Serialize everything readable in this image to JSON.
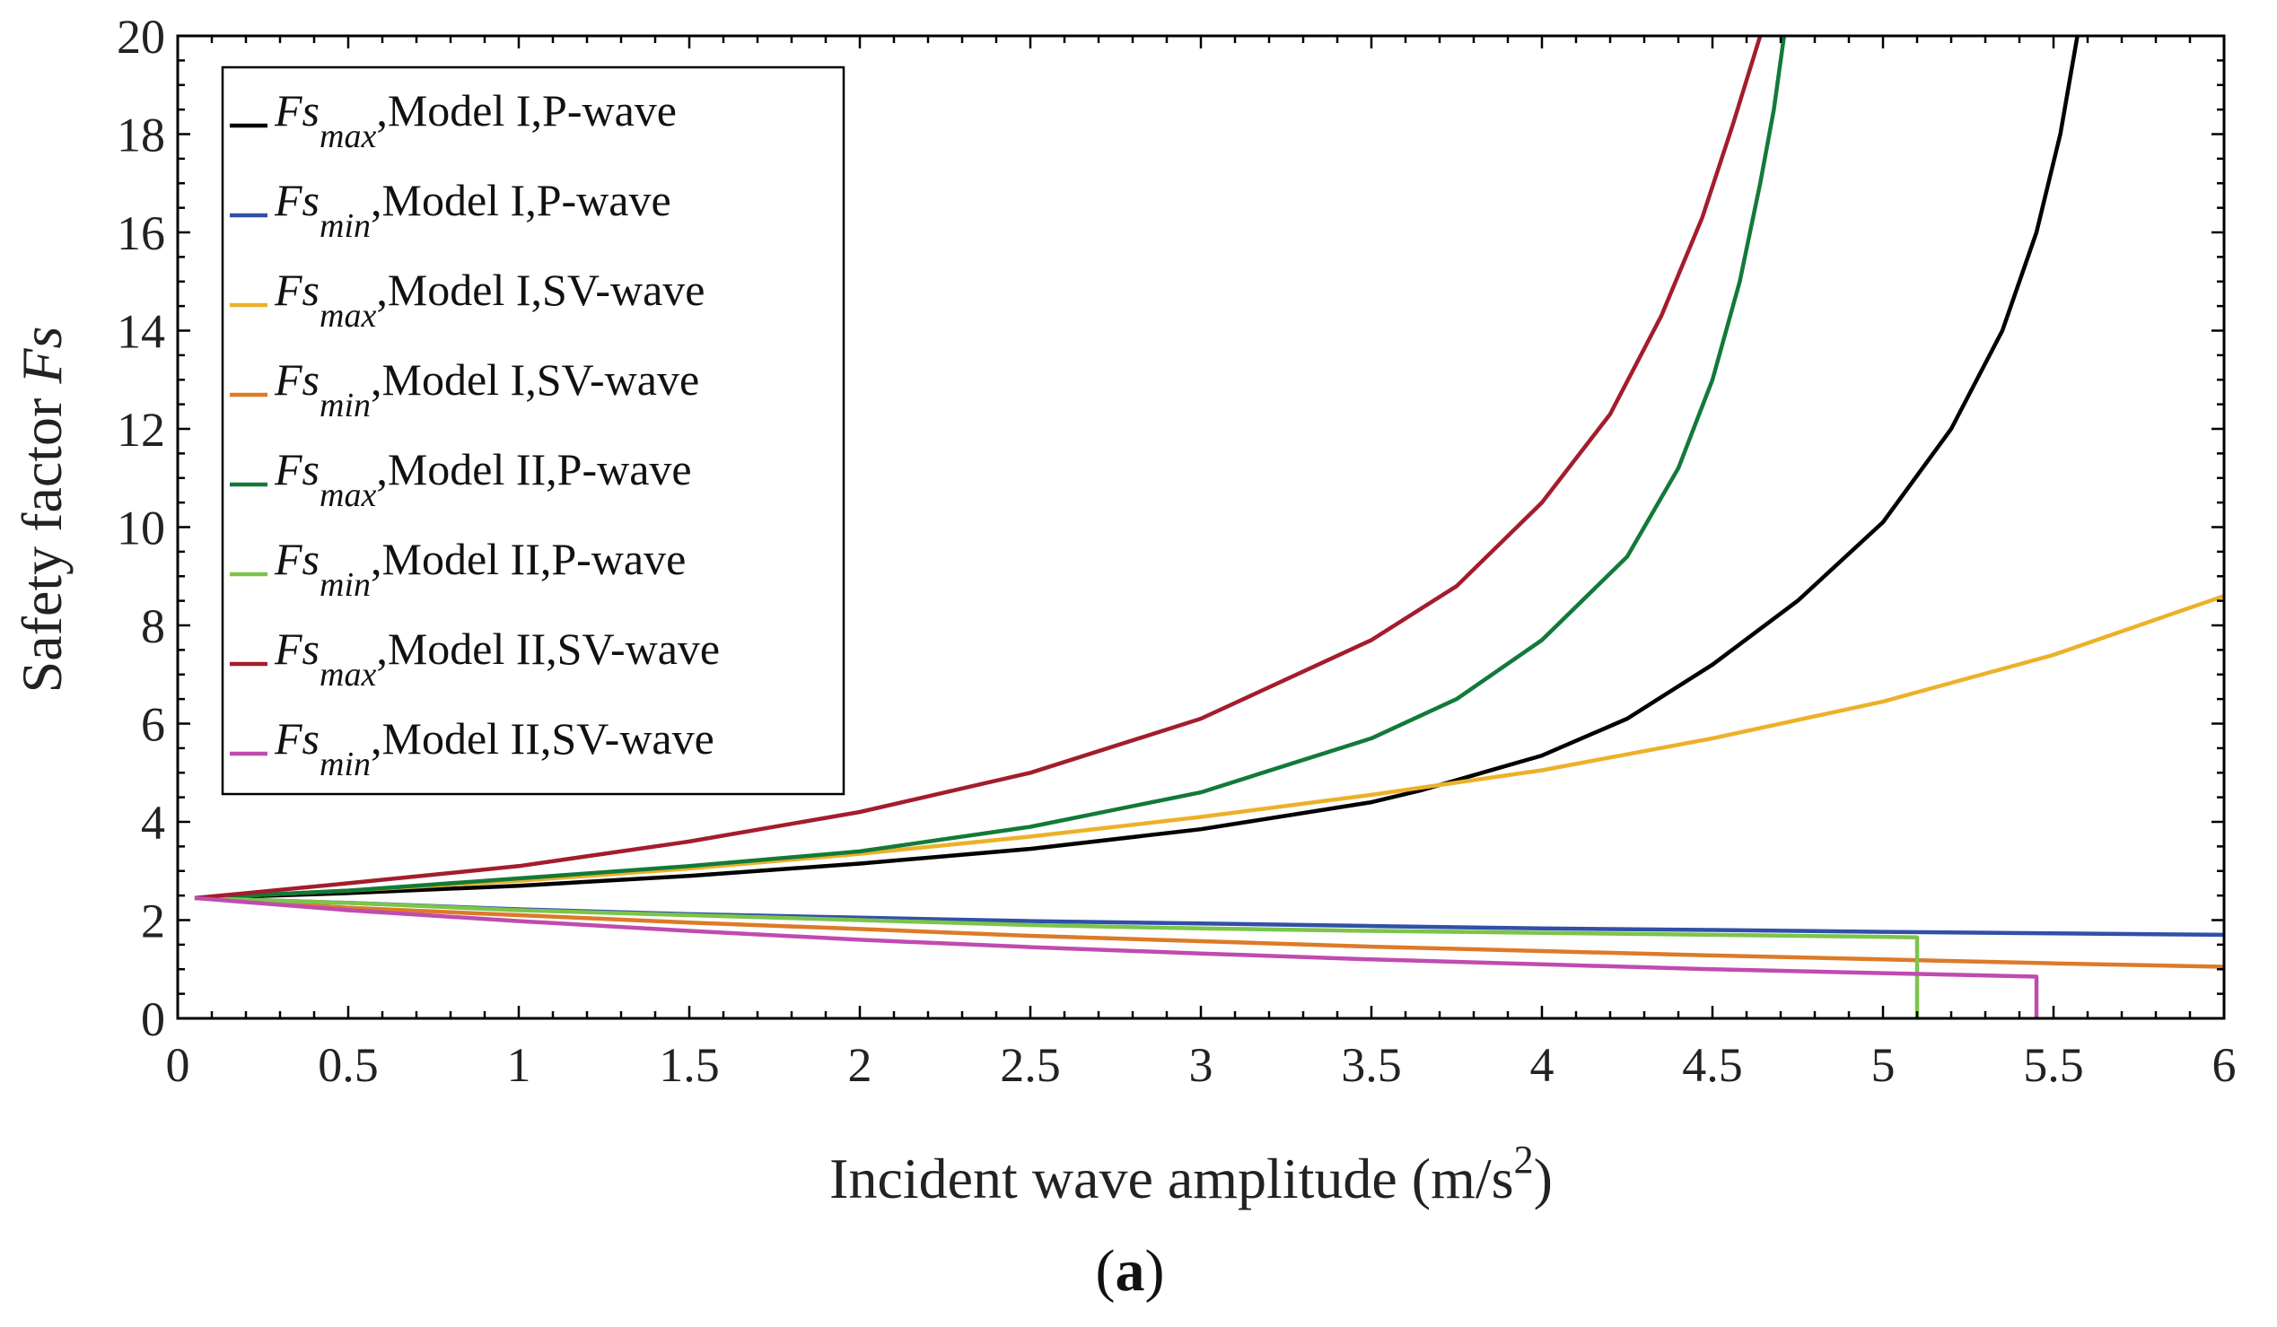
{
  "chart_data": {
    "type": "line",
    "xlabel_main": "Incident wave amplitude (m/s",
    "xlabel_sup": "2",
    "xlabel_end": ")",
    "ylabel_main": "Safety factor ",
    "ylabel_sym": "Fs",
    "panel_label_open": "(",
    "panel_label_letter": "a",
    "panel_label_close": ")",
    "xlim": [
      0,
      6
    ],
    "ylim": [
      0,
      20
    ],
    "xticks": [
      0,
      0.5,
      1,
      1.5,
      2,
      2.5,
      3,
      3.5,
      4,
      4.5,
      5,
      5.5,
      6
    ],
    "yticks": [
      0,
      2,
      4,
      6,
      8,
      10,
      12,
      14,
      16,
      18,
      20
    ],
    "legend_position": "top-left",
    "grid": false,
    "series": [
      {
        "name": "Fsmax,Model I,P-wave",
        "sym": "Fs",
        "sub": "max",
        "text": ",Model I,P-wave",
        "color": "#000000",
        "points": [
          [
            0.05,
            2.45
          ],
          [
            0.5,
            2.55
          ],
          [
            1,
            2.7
          ],
          [
            1.5,
            2.9
          ],
          [
            2,
            3.15
          ],
          [
            2.5,
            3.45
          ],
          [
            3,
            3.85
          ],
          [
            3.5,
            4.4
          ],
          [
            3.65,
            4.65
          ],
          [
            4,
            5.35
          ],
          [
            4.25,
            6.1
          ],
          [
            4.5,
            7.2
          ],
          [
            4.75,
            8.5
          ],
          [
            5,
            10.1
          ],
          [
            5.2,
            12.0
          ],
          [
            5.35,
            14.0
          ],
          [
            5.45,
            16.0
          ],
          [
            5.52,
            18.0
          ],
          [
            5.57,
            20.0
          ]
        ]
      },
      {
        "name": "Fsmin,Model I,P-wave",
        "sym": "Fs",
        "sub": "min",
        "text": ",Model I,P-wave",
        "color": "#3050a8",
        "points": [
          [
            0.05,
            2.45
          ],
          [
            0.5,
            2.35
          ],
          [
            1,
            2.22
          ],
          [
            1.5,
            2.12
          ],
          [
            2,
            2.05
          ],
          [
            2.5,
            1.98
          ],
          [
            3,
            1.93
          ],
          [
            3.5,
            1.88
          ],
          [
            4,
            1.83
          ],
          [
            4.5,
            1.8
          ],
          [
            5,
            1.76
          ],
          [
            5.5,
            1.73
          ],
          [
            6,
            1.7
          ]
        ]
      },
      {
        "name": "Fsmax,Model I,SV-wave",
        "sym": "Fs",
        "sub": "max",
        "text": ",Model I,SV-wave",
        "color": "#ecb12a",
        "points": [
          [
            0.05,
            2.45
          ],
          [
            0.5,
            2.6
          ],
          [
            1,
            2.8
          ],
          [
            1.5,
            3.05
          ],
          [
            2,
            3.35
          ],
          [
            2.5,
            3.7
          ],
          [
            3,
            4.1
          ],
          [
            3.5,
            4.55
          ],
          [
            4,
            5.05
          ],
          [
            4.5,
            5.7
          ],
          [
            5,
            6.45
          ],
          [
            5.5,
            7.4
          ],
          [
            6,
            8.6
          ]
        ]
      },
      {
        "name": "Fsmin,Model I,SV-wave",
        "sym": "Fs",
        "sub": "min",
        "text": ",Model I,SV-wave",
        "color": "#dd7a28",
        "points": [
          [
            0.05,
            2.45
          ],
          [
            0.5,
            2.25
          ],
          [
            1,
            2.1
          ],
          [
            1.5,
            1.95
          ],
          [
            2,
            1.82
          ],
          [
            2.5,
            1.68
          ],
          [
            3,
            1.57
          ],
          [
            3.5,
            1.46
          ],
          [
            4,
            1.37
          ],
          [
            4.5,
            1.28
          ],
          [
            5,
            1.2
          ],
          [
            5.5,
            1.12
          ],
          [
            6,
            1.05
          ]
        ]
      },
      {
        "name": "Fsmax,Model II,P-wave",
        "sym": "Fs",
        "sub": "max",
        "text": ",Model II,P-wave",
        "color": "#127a38",
        "points": [
          [
            0.05,
            2.45
          ],
          [
            0.5,
            2.6
          ],
          [
            1,
            2.85
          ],
          [
            1.5,
            3.1
          ],
          [
            2,
            3.4
          ],
          [
            2.5,
            3.9
          ],
          [
            3,
            4.6
          ],
          [
            3.5,
            5.7
          ],
          [
            3.75,
            6.5
          ],
          [
            4,
            7.7
          ],
          [
            4.25,
            9.4
          ],
          [
            4.4,
            11.2
          ],
          [
            4.5,
            13.0
          ],
          [
            4.58,
            15.0
          ],
          [
            4.64,
            17.0
          ],
          [
            4.68,
            18.5
          ],
          [
            4.71,
            20.0
          ]
        ]
      },
      {
        "name": "Fsmin,Model II,P-wave",
        "sym": "Fs",
        "sub": "min",
        "text": ",Model II,P-wave",
        "color": "#7cc44a",
        "points": [
          [
            0.05,
            2.45
          ],
          [
            0.5,
            2.35
          ],
          [
            1,
            2.2
          ],
          [
            1.5,
            2.1
          ],
          [
            2,
            2.0
          ],
          [
            2.5,
            1.9
          ],
          [
            3,
            1.83
          ],
          [
            3.5,
            1.78
          ],
          [
            4,
            1.74
          ],
          [
            4.5,
            1.7
          ],
          [
            5,
            1.66
          ],
          [
            5.1,
            1.65
          ],
          [
            5.1,
            0
          ]
        ]
      },
      {
        "name": "Fsmax,Model II,SV-wave",
        "sym": "Fs",
        "sub": "max",
        "text": ",Model II,SV-wave",
        "color": "#a31d2c",
        "points": [
          [
            0.05,
            2.45
          ],
          [
            0.5,
            2.75
          ],
          [
            1,
            3.1
          ],
          [
            1.5,
            3.6
          ],
          [
            2,
            4.2
          ],
          [
            2.5,
            5.0
          ],
          [
            3,
            6.1
          ],
          [
            3.5,
            7.7
          ],
          [
            3.75,
            8.8
          ],
          [
            4,
            10.5
          ],
          [
            4.2,
            12.3
          ],
          [
            4.35,
            14.3
          ],
          [
            4.47,
            16.3
          ],
          [
            4.56,
            18.2
          ],
          [
            4.64,
            20.0
          ]
        ]
      },
      {
        "name": "Fsmin,Model II,SV-wave",
        "sym": "Fs",
        "sub": "min",
        "text": ",Model II,SV-wave",
        "color": "#c04bb0",
        "points": [
          [
            0.05,
            2.45
          ],
          [
            0.5,
            2.2
          ],
          [
            1,
            1.98
          ],
          [
            1.5,
            1.78
          ],
          [
            2,
            1.6
          ],
          [
            2.5,
            1.45
          ],
          [
            3,
            1.32
          ],
          [
            3.5,
            1.2
          ],
          [
            4,
            1.1
          ],
          [
            4.5,
            1.0
          ],
          [
            5,
            0.92
          ],
          [
            5.45,
            0.85
          ],
          [
            5.45,
            0
          ]
        ]
      }
    ]
  }
}
